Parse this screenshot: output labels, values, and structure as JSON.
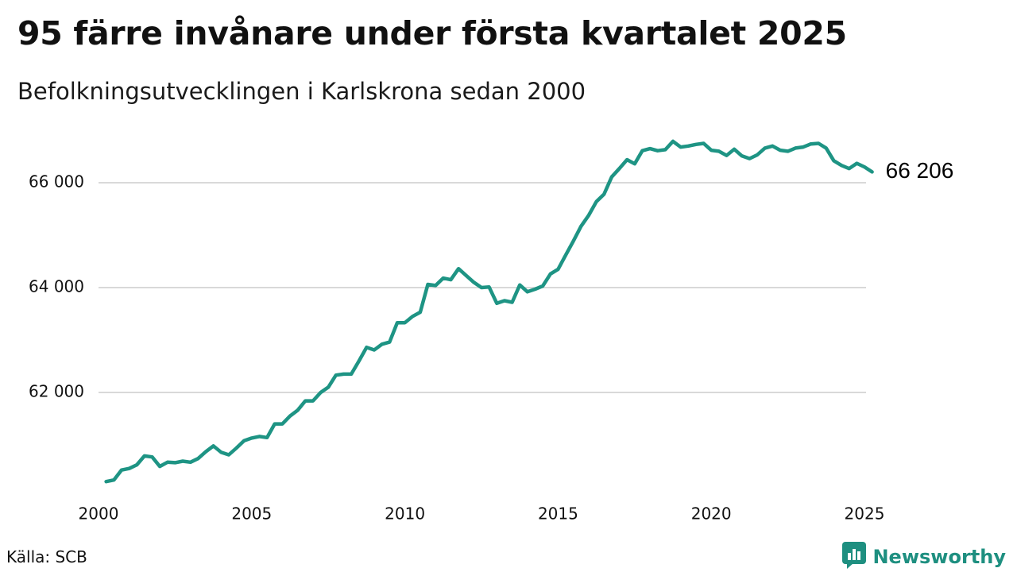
{
  "header": {
    "title": "95 färre invånare under första kvartalet 2025",
    "subtitle": "Befolkningsutvecklingen i Karlskrona sedan 2000"
  },
  "footer": {
    "source": "Källa: SCB",
    "brand": "Newsworthy",
    "brand_icon": "bar-chart-logo-icon"
  },
  "colors": {
    "line": "#1e9484",
    "grid": "#d9d9d9",
    "brand": "#1e8f80"
  },
  "chart_data": {
    "type": "line",
    "title": "95 färre invånare under första kvartalet 2025",
    "subtitle": "Befolkningsutvecklingen i Karlskrona sedan 2000",
    "xlabel": "",
    "ylabel": "",
    "x_ticks": [
      2000,
      2005,
      2010,
      2015,
      2020,
      2025
    ],
    "x_tick_labels": [
      "2000",
      "2005",
      "2010",
      "2015",
      "2020",
      "2025"
    ],
    "y_ticks": [
      62000,
      64000,
      66000
    ],
    "y_tick_labels": [
      "62 000",
      "64 000",
      "66 000"
    ],
    "xlim": [
      2000,
      2025
    ],
    "ylim": [
      60000,
      67200
    ],
    "grid": "horizontal",
    "legend": "none",
    "end_label": "66 206",
    "series": [
      {
        "x": [
          2000.25,
          2000.5,
          2000.75,
          2001,
          2001.25,
          2001.5,
          2001.75,
          2002,
          2002.25,
          2002.5,
          2002.75,
          2003,
          2003.25,
          2003.5,
          2003.75,
          2004,
          2004.25,
          2004.5,
          2004.75,
          2005,
          2005.25,
          2005.5,
          2005.75,
          2006,
          2006.25,
          2006.5,
          2006.75,
          2007,
          2007.25,
          2007.5,
          2007.75,
          2008,
          2008.25,
          2008.5,
          2008.75,
          2009,
          2009.25,
          2009.5,
          2009.75,
          2010,
          2010.25,
          2010.5,
          2010.75,
          2011,
          2011.25,
          2011.5,
          2011.75,
          2012,
          2012.25,
          2012.5,
          2012.75,
          2013,
          2013.25,
          2013.5,
          2013.75,
          2014,
          2014.25,
          2014.5,
          2014.75,
          2015,
          2015.25,
          2015.5,
          2015.75,
          2016,
          2016.25,
          2016.5,
          2016.75,
          2017,
          2017.25,
          2017.5,
          2017.75,
          2018,
          2018.25,
          2018.5,
          2018.75,
          2019,
          2019.25,
          2019.5,
          2019.75,
          2020,
          2020.25,
          2020.5,
          2020.75,
          2021,
          2021.25,
          2021.5,
          2021.75,
          2022,
          2022.25,
          2022.5,
          2022.75,
          2023,
          2023.25,
          2023.5,
          2023.75,
          2024,
          2024.25,
          2024.5,
          2024.75,
          2025,
          2025.25
        ],
        "values": [
          60300,
          60330,
          60520,
          60550,
          60620,
          60790,
          60770,
          60590,
          60670,
          60660,
          60690,
          60670,
          60740,
          60870,
          60980,
          60860,
          60810,
          60940,
          61080,
          61130,
          61160,
          61140,
          61400,
          61400,
          61550,
          61660,
          61840,
          61840,
          62000,
          62100,
          62330,
          62350,
          62350,
          62600,
          62860,
          62810,
          62920,
          62960,
          63330,
          63330,
          63450,
          63530,
          64060,
          64040,
          64180,
          64150,
          64360,
          64230,
          64100,
          64000,
          64010,
          63700,
          63750,
          63720,
          64050,
          63920,
          63970,
          64030,
          64260,
          64350,
          64620,
          64890,
          65170,
          65380,
          65640,
          65780,
          66110,
          66270,
          66440,
          66360,
          66610,
          66650,
          66610,
          66630,
          66790,
          66680,
          66700,
          66730,
          66750,
          66620,
          66600,
          66520,
          66640,
          66510,
          66460,
          66530,
          66660,
          66700,
          66620,
          66600,
          66660,
          66680,
          66740,
          66750,
          66660,
          66420,
          66330,
          66270,
          66370,
          66301,
          66206
        ]
      }
    ]
  }
}
